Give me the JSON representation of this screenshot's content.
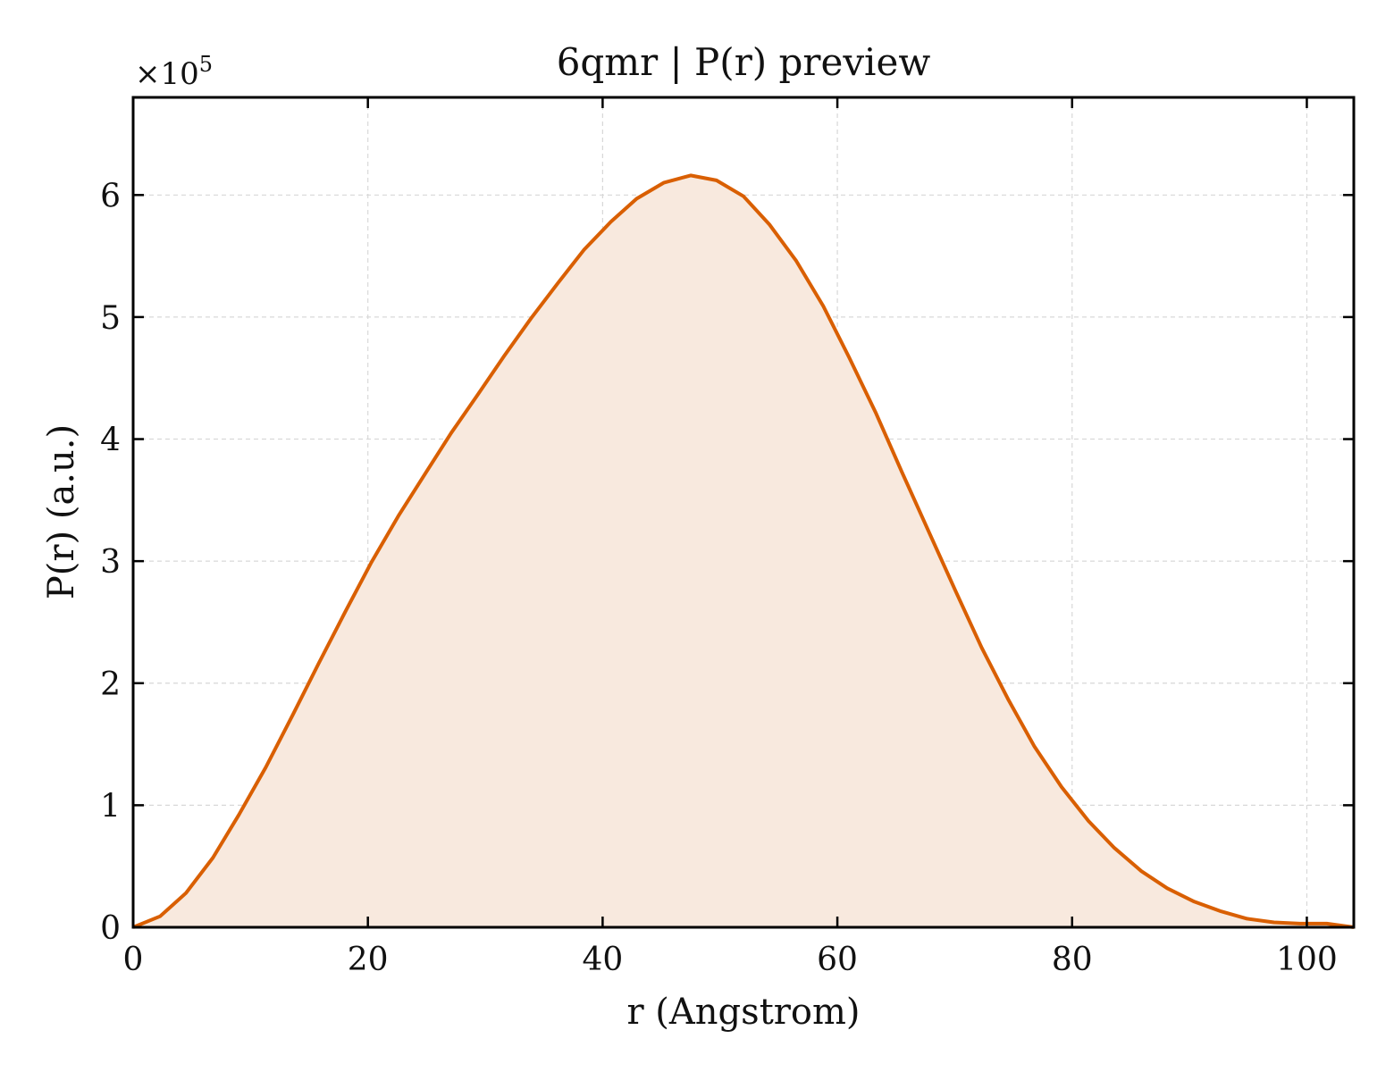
{
  "chart_data": {
    "type": "area",
    "title": "6qmr | P(r) preview",
    "xlabel": "r (Angstrom)",
    "ylabel": "P(r) (a.u.)",
    "y_scale_prefix": "×10",
    "y_scale_exponent": "5",
    "xlim": [
      0,
      104
    ],
    "ylim": [
      0,
      6.8
    ],
    "x_ticks": [
      0,
      20,
      40,
      60,
      80,
      100
    ],
    "x_tick_labels": [
      "0",
      "20",
      "40",
      "60",
      "80",
      "100"
    ],
    "y_ticks": [
      0,
      1,
      2,
      3,
      4,
      5,
      6
    ],
    "y_tick_labels": [
      "0",
      "1",
      "2",
      "3",
      "4",
      "5",
      "6"
    ],
    "grid": true,
    "line_color": "#d95f02",
    "fill_color": "#f8e9de",
    "series": [
      {
        "x": [
          0,
          2.3,
          4.5,
          6.8,
          9.0,
          11.3,
          13.6,
          15.8,
          18.1,
          20.3,
          22.6,
          24.9,
          27.1,
          29.4,
          31.6,
          33.9,
          36.2,
          38.4,
          40.7,
          42.9,
          45.2,
          47.5,
          49.7,
          52.0,
          54.2,
          56.5,
          58.8,
          61.0,
          63.3,
          65.5,
          67.8,
          70.1,
          72.3,
          74.6,
          76.8,
          79.1,
          81.4,
          83.6,
          85.9,
          88.1,
          90.4,
          92.7,
          94.9,
          97.2,
          99.4,
          101.7,
          104.0
        ],
        "y": [
          0.0,
          0.09,
          0.28,
          0.57,
          0.92,
          1.31,
          1.74,
          2.16,
          2.59,
          2.99,
          3.37,
          3.72,
          4.05,
          4.37,
          4.68,
          4.99,
          5.28,
          5.55,
          5.78,
          5.97,
          6.1,
          6.16,
          6.12,
          5.99,
          5.76,
          5.46,
          5.09,
          4.67,
          4.21,
          3.73,
          3.24,
          2.75,
          2.29,
          1.86,
          1.48,
          1.15,
          0.87,
          0.65,
          0.46,
          0.32,
          0.21,
          0.13,
          0.07,
          0.04,
          0.03,
          0.03,
          0.0
        ]
      }
    ]
  }
}
